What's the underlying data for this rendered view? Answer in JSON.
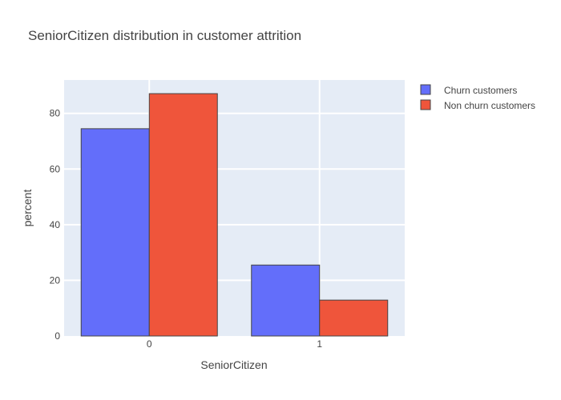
{
  "chart_data": {
    "type": "bar",
    "title": "SeniorCitizen distribution in customer attrition",
    "xlabel": "SeniorCitizen",
    "ylabel": "percent",
    "categories": [
      "0",
      "1"
    ],
    "series": [
      {
        "name": "Churn customers",
        "values": [
          74.5,
          25.5
        ],
        "color": "#636efa"
      },
      {
        "name": "Non churn customers",
        "values": [
          87.1,
          12.9
        ],
        "color": "#ef553b"
      }
    ],
    "ylim": [
      0,
      92
    ],
    "yticks": [
      0,
      20,
      40,
      60,
      80
    ],
    "grid": true,
    "plot_background": "#e5ecf6",
    "legend_position": "top-right"
  }
}
